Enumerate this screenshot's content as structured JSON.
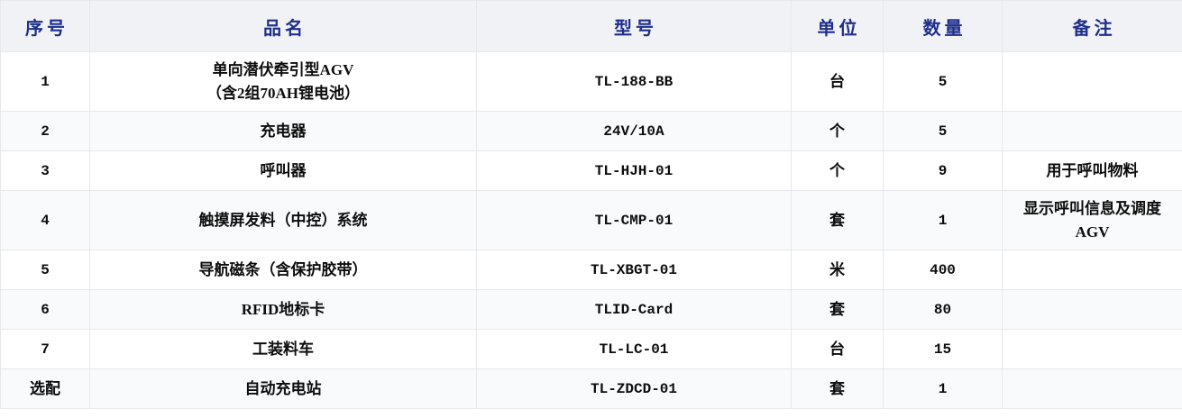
{
  "table": {
    "colors": {
      "header_bg": "#f0f2f6",
      "header_text": "#1e2f8a",
      "stripe_bg": "#f9fafb",
      "border": "#e6e8ec",
      "body_text": "#0d0d0d"
    },
    "columns": [
      {
        "key": "index",
        "label": "序号"
      },
      {
        "key": "name",
        "label": "品名"
      },
      {
        "key": "model",
        "label": "型号"
      },
      {
        "key": "unit",
        "label": "单位"
      },
      {
        "key": "qty",
        "label": "数量"
      },
      {
        "key": "remark",
        "label": "备注"
      }
    ],
    "rows": [
      {
        "index": "1",
        "name": "单向潜伏牵引型AGV\n（含2组70AH锂电池）",
        "model": "TL-188-BB",
        "unit": "台",
        "qty": "5",
        "remark": ""
      },
      {
        "index": "2",
        "name": "充电器",
        "model": "24V/10A",
        "unit": "个",
        "qty": "5",
        "remark": ""
      },
      {
        "index": "3",
        "name": "呼叫器",
        "model": "TL-HJH-01",
        "unit": "个",
        "qty": "9",
        "remark": "用于呼叫物料"
      },
      {
        "index": "4",
        "name": "触摸屏发料（中控）系统",
        "model": "TL-CMP-01",
        "unit": "套",
        "qty": "1",
        "remark": "显示呼叫信息及调度AGV"
      },
      {
        "index": "5",
        "name": "导航磁条（含保护胶带）",
        "model": "TL-XBGT-01",
        "unit": "米",
        "qty": "400",
        "remark": ""
      },
      {
        "index": "6",
        "name": "RFID地标卡",
        "model": "TLID-Card",
        "unit": "套",
        "qty": "80",
        "remark": ""
      },
      {
        "index": "7",
        "name": "工装料车",
        "model": "TL-LC-01",
        "unit": "台",
        "qty": "15",
        "remark": ""
      },
      {
        "index": "选配",
        "name": "自动充电站",
        "model": "TL-ZDCD-01",
        "unit": "套",
        "qty": "1",
        "remark": ""
      }
    ]
  }
}
